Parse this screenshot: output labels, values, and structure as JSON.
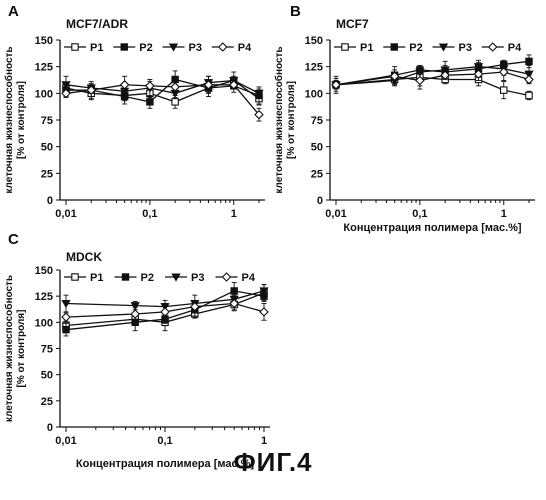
{
  "figure_caption": "ФИГ.4",
  "series_names": [
    "P1",
    "P2",
    "P3",
    "P4"
  ],
  "chart_data": [
    {
      "type": "line",
      "panel_letter": "A",
      "title": "MCF7/ADR",
      "xlabel": "",
      "ylabel_line1": "клеточная жизнеспособность",
      "ylabel_line2": "[% от контроля]",
      "x_scale": "log",
      "xlim": [
        0.01,
        2
      ],
      "ylim": [
        0,
        150
      ],
      "yticks": [
        0,
        25,
        50,
        75,
        100,
        125,
        150
      ],
      "xticks": [
        {
          "v": 0.01,
          "label": "0,01"
        },
        {
          "v": 0.1,
          "label": "0,1"
        },
        {
          "v": 1,
          "label": "1"
        }
      ],
      "series": [
        {
          "name": "P1",
          "marker": "square-open",
          "x": [
            0.01,
            0.02,
            0.05,
            0.1,
            0.2,
            0.5,
            1,
            2
          ],
          "y": [
            105,
            100,
            98,
            100,
            92,
            105,
            112,
            95
          ]
        },
        {
          "name": "P2",
          "marker": "square-filled",
          "x": [
            0.01,
            0.02,
            0.05,
            0.1,
            0.2,
            0.5,
            1,
            2
          ],
          "y": [
            103,
            103,
            97,
            92,
            113,
            105,
            107,
            98
          ]
        },
        {
          "name": "P3",
          "marker": "triangle-down",
          "x": [
            0.01,
            0.02,
            0.05,
            0.1,
            0.2,
            0.5,
            1,
            2
          ],
          "y": [
            108,
            105,
            102,
            105,
            100,
            110,
            112,
            100
          ]
        },
        {
          "name": "P4",
          "marker": "diamond-open",
          "x": [
            0.01,
            0.02,
            0.05,
            0.1,
            0.2,
            0.5,
            1,
            2
          ],
          "y": [
            100,
            103,
            108,
            107,
            106,
            108,
            108,
            80
          ]
        }
      ]
    },
    {
      "type": "line",
      "panel_letter": "B",
      "title": "MCF7",
      "xlabel": "Концентрация полимера [мас.%]",
      "ylabel_line1": "клеточная жизнеспособность",
      "ylabel_line2": "[% от контроля]",
      "x_scale": "log",
      "xlim": [
        0.01,
        2
      ],
      "ylim": [
        0,
        150
      ],
      "yticks": [
        0,
        25,
        50,
        75,
        100,
        125,
        150
      ],
      "xticks": [
        {
          "v": 0.01,
          "label": "0,01"
        },
        {
          "v": 0.1,
          "label": "0,1"
        },
        {
          "v": 1,
          "label": "1"
        }
      ],
      "series": [
        {
          "name": "P1",
          "marker": "square-open",
          "x": [
            0.01,
            0.05,
            0.1,
            0.2,
            0.5,
            1,
            2
          ],
          "y": [
            108,
            113,
            115,
            113,
            113,
            103,
            98
          ]
        },
        {
          "name": "P2",
          "marker": "square-filled",
          "x": [
            0.01,
            0.05,
            0.1,
            0.2,
            0.5,
            1,
            2
          ],
          "y": [
            108,
            117,
            122,
            120,
            123,
            127,
            130
          ]
        },
        {
          "name": "P3",
          "marker": "triangle-down",
          "x": [
            0.01,
            0.05,
            0.1,
            0.2,
            0.5,
            1,
            2
          ],
          "y": [
            108,
            112,
            120,
            122,
            125,
            123,
            118
          ]
        },
        {
          "name": "P4",
          "marker": "diamond-open",
          "x": [
            0.01,
            0.05,
            0.1,
            0.2,
            0.5,
            1,
            2
          ],
          "y": [
            108,
            116,
            112,
            117,
            118,
            120,
            113
          ]
        }
      ]
    },
    {
      "type": "line",
      "panel_letter": "C",
      "title": "MDCK",
      "xlabel": "Концентрация полимера [мас.%]",
      "ylabel_line1": "клеточная жизнеспособность",
      "ylabel_line2": "[% от контроля]",
      "x_scale": "log",
      "xlim": [
        0.01,
        1
      ],
      "ylim": [
        0,
        150
      ],
      "yticks": [
        0,
        25,
        50,
        75,
        100,
        125,
        150
      ],
      "xticks": [
        {
          "v": 0.01,
          "label": "0,01"
        },
        {
          "v": 0.1,
          "label": "0,1"
        },
        {
          "v": 1,
          "label": "1"
        }
      ],
      "series": [
        {
          "name": "P1",
          "marker": "square-open",
          "x": [
            0.01,
            0.05,
            0.1,
            0.2,
            0.5,
            1
          ],
          "y": [
            97,
            103,
            100,
            108,
            117,
            128
          ]
        },
        {
          "name": "P2",
          "marker": "square-filled",
          "x": [
            0.01,
            0.05,
            0.1,
            0.2,
            0.5,
            1
          ],
          "y": [
            93,
            100,
            103,
            112,
            130,
            125
          ]
        },
        {
          "name": "P3",
          "marker": "triangle-down",
          "x": [
            0.01,
            0.05,
            0.1,
            0.2,
            0.5,
            1
          ],
          "y": [
            118,
            116,
            115,
            118,
            122,
            130
          ]
        },
        {
          "name": "P4",
          "marker": "diamond-open",
          "x": [
            0.01,
            0.05,
            0.1,
            0.2,
            0.5,
            1
          ],
          "y": [
            105,
            108,
            110,
            115,
            118,
            110
          ]
        }
      ]
    }
  ]
}
